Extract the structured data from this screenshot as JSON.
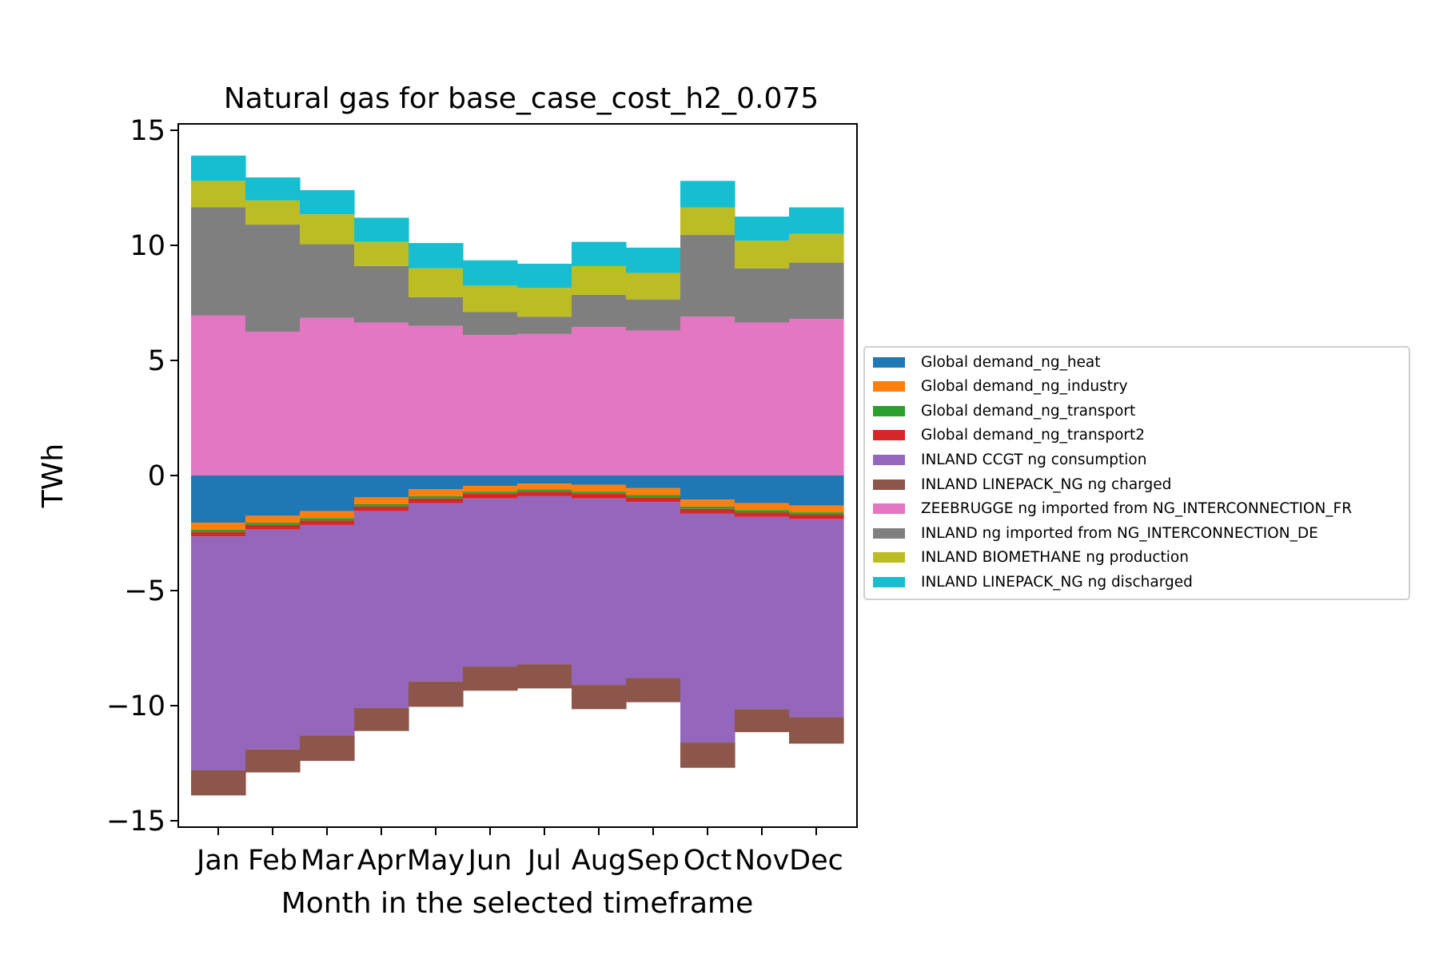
{
  "chart_data": {
    "type": "bar",
    "title": "Natural gas for base_case_cost_h2_0.075",
    "xlabel": "Month in the selected timeframe",
    "ylabel": "TWh",
    "ylim": [
      -15,
      15
    ],
    "yticks": [
      15,
      10,
      5,
      0,
      -5,
      -10,
      -15
    ],
    "ytick_labels": [
      "15",
      "10",
      "5",
      "0",
      "−5",
      "−10",
      "−15"
    ],
    "categories": [
      "Jan",
      "Feb",
      "Mar",
      "Apr",
      "May",
      "Jun",
      "Jul",
      "Aug",
      "Sep",
      "Oct",
      "Nov",
      "Dec"
    ],
    "legend_position": "center-right outside",
    "series": [
      {
        "name": "Global demand_ng_heat",
        "color": "#1f77b4",
        "values": [
          -2.05,
          -1.75,
          -1.55,
          -0.95,
          -0.6,
          -0.45,
          -0.35,
          -0.4,
          -0.55,
          -1.05,
          -1.2,
          -1.3
        ]
      },
      {
        "name": "Global demand_ng_industry",
        "color": "#ff7f0e",
        "values": [
          -0.3,
          -0.3,
          -0.3,
          -0.3,
          -0.3,
          -0.25,
          -0.25,
          -0.3,
          -0.3,
          -0.3,
          -0.3,
          -0.3
        ]
      },
      {
        "name": "Global demand_ng_transport",
        "color": "#2ca02c",
        "values": [
          -0.1,
          -0.1,
          -0.1,
          -0.1,
          -0.1,
          -0.1,
          -0.1,
          -0.1,
          -0.1,
          -0.1,
          -0.1,
          -0.1
        ]
      },
      {
        "name": "Global demand_ng_transport2",
        "color": "#d62728",
        "values": [
          -0.2,
          -0.2,
          -0.2,
          -0.2,
          -0.2,
          -0.2,
          -0.2,
          -0.2,
          -0.2,
          -0.2,
          -0.2,
          -0.2
        ]
      },
      {
        "name": "INLAND CCGT ng consumption",
        "color": "#9467bd",
        "values": [
          -10.15,
          -9.55,
          -9.15,
          -8.55,
          -7.75,
          -7.3,
          -7.3,
          -8.1,
          -7.65,
          -9.95,
          -8.35,
          -8.6
        ]
      },
      {
        "name": "INLAND LINEPACK_NG ng charged",
        "color": "#8c564b",
        "values": [
          -1.1,
          -1.0,
          -1.1,
          -1.0,
          -1.1,
          -1.05,
          -1.05,
          -1.05,
          -1.05,
          -1.1,
          -1.0,
          -1.15
        ]
      },
      {
        "name": "ZEEBRUGGE ng imported from NG_INTERCONNECTION_FR",
        "color": "#e377c2",
        "values": [
          6.95,
          6.25,
          6.85,
          6.65,
          6.5,
          6.1,
          6.15,
          6.45,
          6.3,
          6.9,
          6.65,
          6.8
        ]
      },
      {
        "name": "INLAND ng imported from NG_INTERCONNECTION_DE",
        "color": "#7f7f7f",
        "values": [
          4.7,
          4.65,
          3.2,
          2.45,
          1.25,
          1.0,
          0.75,
          1.4,
          1.35,
          3.55,
          2.35,
          2.45
        ]
      },
      {
        "name": "INLAND BIOMETHANE ng production",
        "color": "#bcbd22",
        "values": [
          1.15,
          1.05,
          1.3,
          1.05,
          1.25,
          1.15,
          1.25,
          1.25,
          1.15,
          1.2,
          1.2,
          1.25
        ]
      },
      {
        "name": "INLAND LINEPACK_NG ng discharged",
        "color": "#17becf",
        "values": [
          1.1,
          1.0,
          1.05,
          1.05,
          1.1,
          1.1,
          1.05,
          1.05,
          1.1,
          1.15,
          1.05,
          1.15
        ]
      }
    ]
  }
}
